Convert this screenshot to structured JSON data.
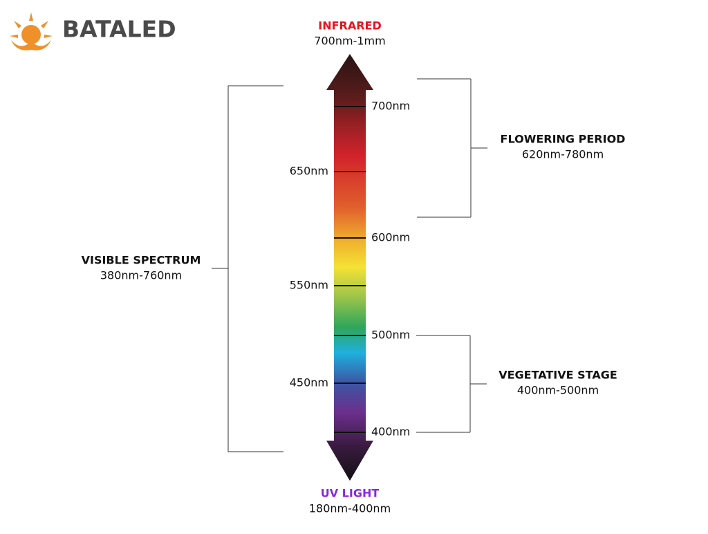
{
  "logo": {
    "text": "BATALED"
  },
  "top": {
    "title": "INFRARED",
    "range": "700nm-1mm"
  },
  "bottom": {
    "title": "UV LIGHT",
    "range": "180nm-400nm"
  },
  "ticks": [
    "700nm",
    "650nm",
    "600nm",
    "550nm",
    "500nm",
    "450nm",
    "400nm"
  ],
  "brackets": {
    "visible": {
      "title": "VISIBLE SPECTRUM",
      "range": "380nm-760nm"
    },
    "flowering": {
      "title": "FLOWERING PERIOD",
      "range": "620nm-780nm"
    },
    "vegetative": {
      "title": "VEGETATIVE STAGE",
      "range": "400nm-500nm"
    }
  }
}
